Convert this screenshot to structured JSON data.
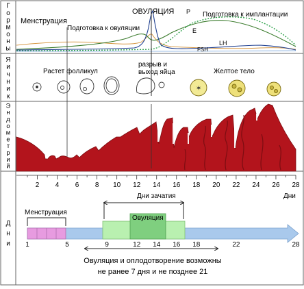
{
  "side_labels": {
    "hormones": "Гормоны",
    "ovary": "Яичник",
    "endometrium": "Эндометрий",
    "days": "Дни"
  },
  "hormones": {
    "menstruation": "Менструация",
    "prep_ovulation": "Подготовка к овуляции",
    "ovulation": "ОВУЛЯЦИЯ",
    "prep_implantation": "Подготовка к имплантации",
    "p": "P",
    "e": "E",
    "lh": "LH",
    "fsh": "FSH"
  },
  "ovary": {
    "follicle_growth": "Растет фолликул",
    "rupture_line1": "разрыв и",
    "rupture_line2": "выход яйца",
    "corpus_luteum": "Желтое тело"
  },
  "axis": {
    "ticks": [
      "2",
      "4",
      "6",
      "8",
      "10",
      "12",
      "14",
      "16",
      "18",
      "20",
      "22",
      "24",
      "26",
      "28"
    ],
    "unit": "Дни"
  },
  "timeline": {
    "conception_days": "Дни зачатия",
    "ovulation": "Овуляция",
    "menstruation": "Менструация",
    "day_labels": [
      "1",
      "5",
      "9",
      "12",
      "14",
      "16",
      "18",
      "22",
      "28"
    ],
    "note_line1": "Овуляция и оплодотворение возможны",
    "note_line2": "не ранее 7 дня и не позднее 21"
  },
  "colors": {
    "endometrium": "#b3141c",
    "menstruation_segment": "#e79be0",
    "fertile_segment": "#b9f0b0",
    "ovulation_segment": "#7fcf7f",
    "bar": "#a9c9ec",
    "estrogen": "#3a7b2c",
    "progesterone": "#2ea24a",
    "lh": "#1f3f8f",
    "fsh": "#d79a48"
  }
}
